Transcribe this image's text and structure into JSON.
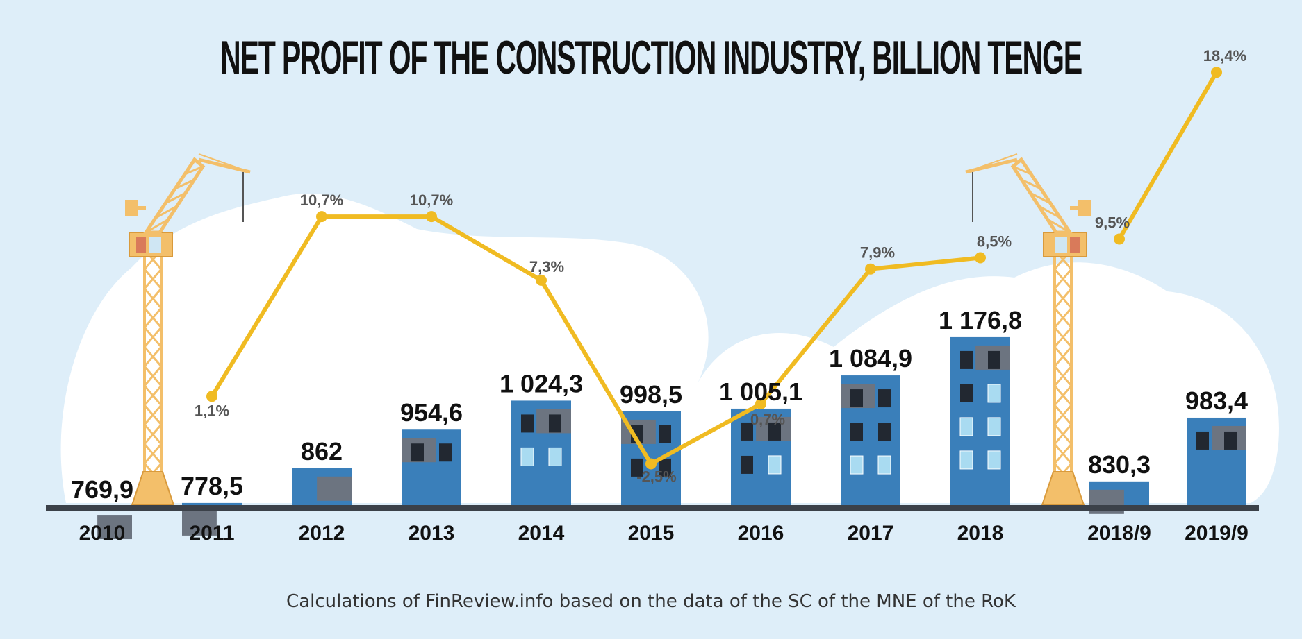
{
  "title": "NET PROFIT OF THE CONSTRUCTION INDUSTRY, BILLION TENGE",
  "source": "Calculations of FinReview.info based on the data of the SC of the MNE of the RoK",
  "colors": {
    "background": "#deeef9",
    "cloud": "#ffffff",
    "building": "#3a7fba",
    "roof": "#6c7480",
    "window_dark": "#222831",
    "window_light": "#a9dbf1",
    "line": "#f0bb22",
    "crane": "#f3bf6a",
    "ground": "#3b4149"
  },
  "chart_data": {
    "type": "bar",
    "categories": [
      "2010",
      "2011",
      "2012",
      "2013",
      "2014",
      "2015",
      "2016",
      "2017",
      "2018",
      "2018/9",
      "2019/9"
    ],
    "values": [
      769.9,
      778.5,
      862,
      954.6,
      1024.3,
      998.5,
      1005.1,
      1084.9,
      1176.8,
      830.3,
      983.4
    ],
    "value_labels": [
      "769,9",
      "778,5",
      "862",
      "954,6",
      "1 024,3",
      "998,5",
      "1 005,1",
      "1 084,9",
      "1 176,8",
      "830,3",
      "983,4"
    ],
    "growth_pct": [
      null,
      1.1,
      10.7,
      10.7,
      7.3,
      -2.5,
      0.7,
      7.9,
      8.5,
      9.5,
      18.4
    ],
    "growth_labels": [
      "",
      "1,1%",
      "10,7%",
      "10,7%",
      "7,3%",
      "-2,5%",
      "0,7%",
      "7,9%",
      "8,5%",
      "9,5%",
      "18,4%"
    ],
    "line_segments": [
      [
        1,
        8
      ],
      [
        9,
        10
      ]
    ]
  }
}
